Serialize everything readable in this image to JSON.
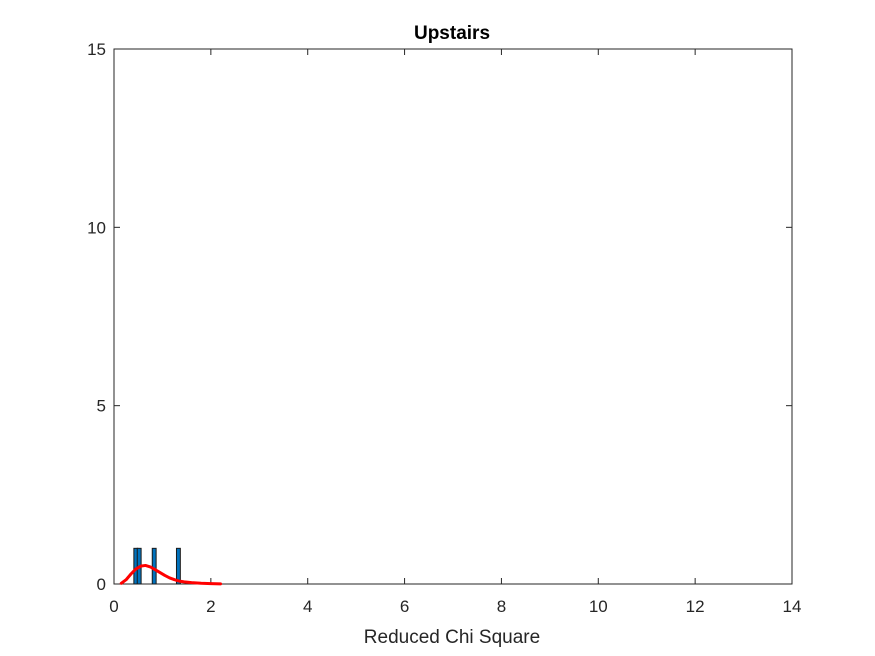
{
  "chart_data": {
    "type": "bar",
    "title": "Upstairs",
    "xlabel": "Reduced Chi Square",
    "ylabel": "",
    "xlim": [
      0,
      14
    ],
    "ylim": [
      0,
      15
    ],
    "xticks": [
      0,
      2,
      4,
      6,
      8,
      10,
      12,
      14
    ],
    "yticks": [
      0,
      5,
      10,
      15
    ],
    "grid": false,
    "bar_color": "#0072BD",
    "histogram": {
      "bin_width": 0.08,
      "bars": [
        {
          "x": 0.45,
          "value": 1
        },
        {
          "x": 0.52,
          "value": 1
        },
        {
          "x": 0.83,
          "value": 1
        },
        {
          "x": 1.33,
          "value": 1
        }
      ]
    },
    "fit_curve": {
      "color": "#FF0000",
      "x": [
        0.15,
        0.25,
        0.35,
        0.45,
        0.55,
        0.65,
        0.75,
        0.85,
        0.95,
        1.05,
        1.15,
        1.25,
        1.35,
        1.45,
        1.6,
        1.8,
        2.0,
        2.2
      ],
      "y": [
        0.02,
        0.12,
        0.28,
        0.42,
        0.5,
        0.52,
        0.48,
        0.4,
        0.32,
        0.24,
        0.17,
        0.12,
        0.08,
        0.06,
        0.04,
        0.02,
        0.01,
        0.005
      ]
    }
  }
}
